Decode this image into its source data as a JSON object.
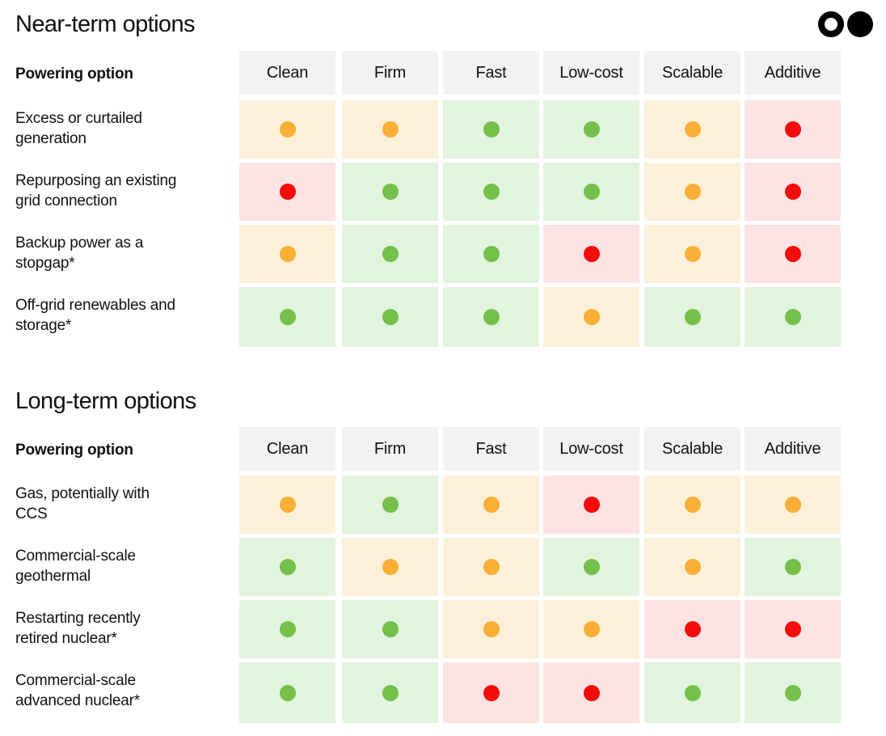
{
  "near_term": {
    "title": "Near-term options",
    "header_label": "Powering option",
    "columns": [
      "Clean",
      "Firm",
      "Fast",
      "Low-cost",
      "Scalable",
      "Additive"
    ],
    "rows": [
      {
        "label": "Excess or curtailed generation",
        "ratings": [
          "orange",
          "orange",
          "green",
          "green",
          "orange",
          "red"
        ]
      },
      {
        "label": "Repurposing an existing grid connection",
        "ratings": [
          "red",
          "green",
          "green",
          "green",
          "orange",
          "red"
        ]
      },
      {
        "label": "Backup power as a stopgap*",
        "ratings": [
          "orange",
          "green",
          "green",
          "red",
          "orange",
          "red"
        ]
      },
      {
        "label": "Off-grid renewables and storage*",
        "ratings": [
          "green",
          "green",
          "green",
          "orange",
          "green",
          "green"
        ]
      }
    ]
  },
  "long_term": {
    "title": "Long-term options",
    "header_label": "Powering option",
    "columns": [
      "Clean",
      "Firm",
      "Fast",
      "Low-cost",
      "Scalable",
      "Additive"
    ],
    "rows": [
      {
        "label": "Gas, potentially with CCS",
        "ratings": [
          "orange",
          "green",
          "orange",
          "red",
          "orange",
          "orange"
        ]
      },
      {
        "label": "Commercial-scale geothermal",
        "ratings": [
          "green",
          "orange",
          "orange",
          "green",
          "orange",
          "green"
        ]
      },
      {
        "label": "Restarting recently retired nuclear*",
        "ratings": [
          "green",
          "green",
          "orange",
          "orange",
          "red",
          "red"
        ]
      },
      {
        "label": "Commercial-scale advanced nuclear*",
        "ratings": [
          "green",
          "green",
          "red",
          "red",
          "green",
          "green"
        ]
      }
    ]
  },
  "legend_colors": {
    "green": "#74c04a",
    "orange": "#fbaf36",
    "red": "#f20c0c"
  },
  "logo": {
    "icon": "two-circles-logo-icon"
  }
}
